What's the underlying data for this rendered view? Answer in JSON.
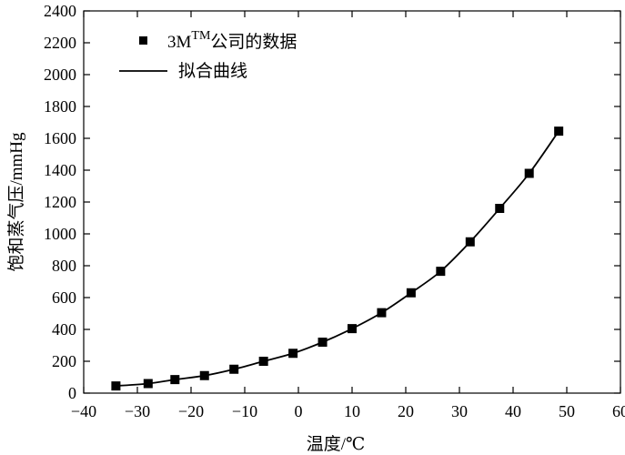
{
  "chart_data": {
    "type": "scatter",
    "xlabel": "温度/℃",
    "ylabel": "饱和蒸气压/mmHg",
    "xlim": [
      -40,
      60
    ],
    "ylim": [
      0,
      2400
    ],
    "xticks": [
      -40,
      -30,
      -20,
      -10,
      0,
      10,
      20,
      30,
      40,
      50,
      60
    ],
    "xtick_labels": [
      "−40",
      "−30",
      "−20",
      "−10",
      "0",
      "10",
      "20",
      "30",
      "40",
      "50",
      "60"
    ],
    "yticks": [
      0,
      200,
      400,
      600,
      800,
      1000,
      1200,
      1400,
      1600,
      1800,
      2000,
      2200,
      2400
    ],
    "ytick_labels": [
      "0",
      "200",
      "400",
      "600",
      "800",
      "1000",
      "1200",
      "1400",
      "1600",
      "1800",
      "2000",
      "2200",
      "2400"
    ],
    "grid": false,
    "legend": {
      "position": "top-left"
    },
    "series": [
      {
        "name": "3MTM公司的数据",
        "name_base": "3M",
        "name_sup": "TM",
        "name_rest": "公司的数据",
        "kind": "points",
        "marker": "square",
        "color": "#000000",
        "x": [
          -34,
          -28,
          -23,
          -17.5,
          -12,
          -6.5,
          -1,
          4.5,
          10,
          15.5,
          21,
          26.5,
          32,
          37.5,
          43,
          48.5
        ],
        "y": [
          45,
          60,
          85,
          110,
          150,
          200,
          250,
          320,
          405,
          505,
          630,
          765,
          950,
          1160,
          1380,
          1645
        ]
      },
      {
        "name": "拟合曲线",
        "kind": "line",
        "color": "#000000",
        "x": [
          -34,
          -28,
          -23,
          -17.5,
          -12,
          -6.5,
          -1,
          4.5,
          10,
          15.5,
          21,
          26.5,
          32,
          37.5,
          43,
          48.5
        ],
        "y": [
          45,
          60,
          85,
          110,
          150,
          200,
          250,
          320,
          405,
          505,
          630,
          765,
          950,
          1160,
          1380,
          1645
        ]
      }
    ]
  }
}
